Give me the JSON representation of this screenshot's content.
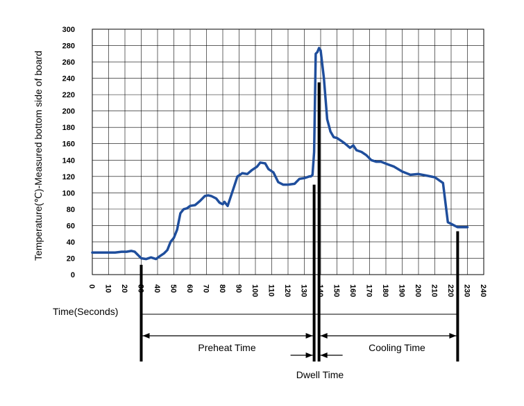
{
  "chart_data": {
    "type": "line",
    "title": "",
    "xlabel": "Time(Seconds)",
    "ylabel": "Temperature(℃)-Measured bottom side of board",
    "xlim": [
      0,
      240
    ],
    "ylim": [
      0,
      300
    ],
    "xticks": [
      0,
      10,
      20,
      30,
      40,
      50,
      60,
      70,
      80,
      90,
      100,
      110,
      120,
      130,
      140,
      150,
      160,
      170,
      180,
      190,
      200,
      210,
      220,
      230,
      240
    ],
    "yticks": [
      0,
      20,
      40,
      60,
      80,
      100,
      120,
      140,
      160,
      180,
      200,
      220,
      240,
      260,
      280,
      300
    ],
    "grid": true,
    "line_color": "#1f4e9c",
    "series": [
      {
        "x": [
          0,
          10,
          14,
          18,
          21,
          24,
          26,
          30,
          33,
          36,
          39,
          41,
          44,
          46,
          48,
          50,
          52,
          54,
          56,
          58,
          60,
          63,
          66,
          69,
          71,
          73,
          76,
          78,
          80,
          81,
          83,
          86,
          89,
          92,
          95,
          98,
          101,
          103,
          106,
          108,
          111,
          114,
          117,
          120,
          124,
          127,
          130,
          133,
          134,
          135,
          136,
          137,
          138,
          139,
          140,
          142,
          144,
          146,
          148,
          150,
          153,
          155,
          158,
          160,
          162,
          165,
          168,
          171,
          174,
          177,
          181,
          185,
          190,
          195,
          200,
          205,
          210,
          215,
          218,
          220,
          222,
          224,
          227,
          230
        ],
        "y": [
          27,
          27,
          27,
          28,
          28,
          29,
          28,
          20,
          19,
          21,
          19,
          22,
          26,
          30,
          40,
          45,
          55,
          75,
          80,
          81,
          84,
          85,
          90,
          96,
          97,
          96,
          93,
          88,
          86,
          89,
          84,
          102,
          120,
          124,
          123,
          128,
          132,
          137,
          136,
          129,
          125,
          113,
          110,
          110,
          111,
          117,
          118,
          120,
          120,
          122,
          150,
          270,
          272,
          277,
          274,
          240,
          190,
          175,
          168,
          167,
          163,
          160,
          155,
          158,
          152,
          150,
          146,
          140,
          138,
          138,
          135,
          132,
          126,
          122,
          123,
          121,
          119,
          112,
          64,
          62,
          60,
          58,
          58,
          58
        ]
      }
    ],
    "annotations": {
      "preheat_label": "Preheat Time",
      "cooling_label": "Cooling Time",
      "dwell_label": "Dwell Time",
      "markers": [
        {
          "x": 30,
          "y_top": 12
        },
        {
          "x": 136,
          "y_top": 110
        },
        {
          "x": 139,
          "y_top": 235
        },
        {
          "x": 224,
          "y_top": 53
        }
      ]
    }
  }
}
